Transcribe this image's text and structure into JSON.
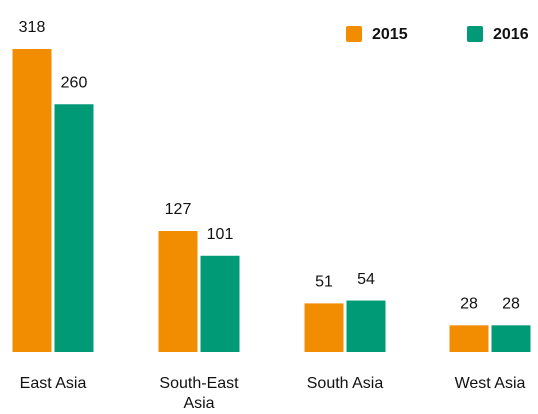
{
  "chart_data": {
    "type": "bar",
    "categories": [
      "East Asia",
      "South-East Asia",
      "South Asia",
      "West Asia"
    ],
    "series": [
      {
        "name": "2015",
        "color": "#f28c00",
        "values": [
          318,
          127,
          51,
          28
        ]
      },
      {
        "name": "2016",
        "color": "#009a77",
        "values": [
          260,
          101,
          54,
          28
        ]
      }
    ],
    "legend": "top-right"
  }
}
